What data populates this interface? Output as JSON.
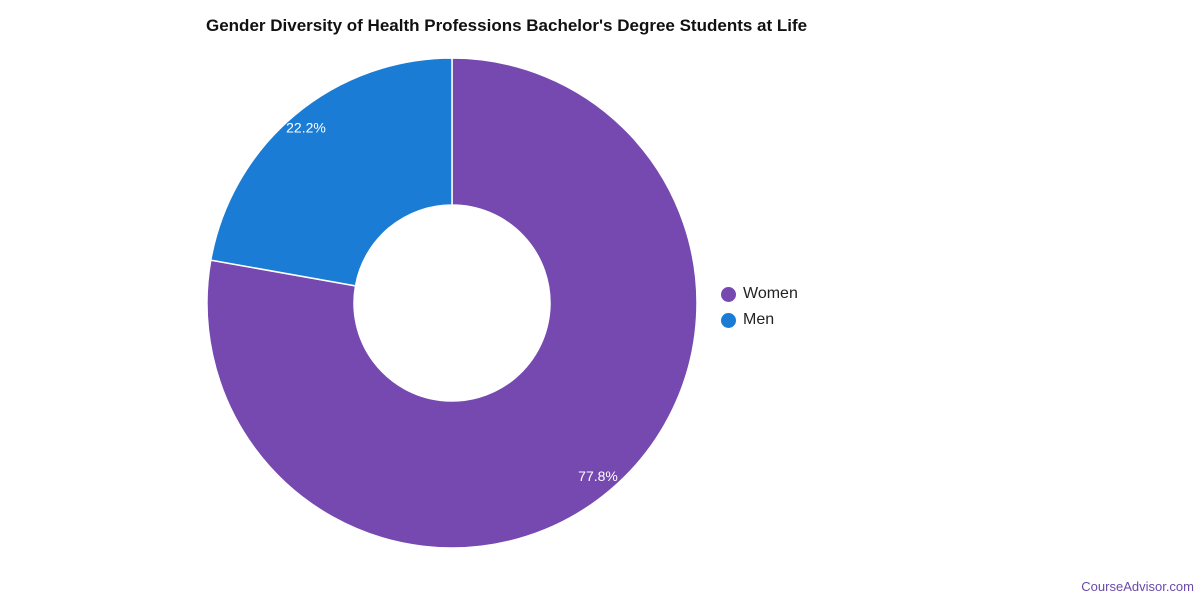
{
  "chart_data": {
    "type": "pie",
    "variant": "donut",
    "title": "Gender Diversity of Health Professions Bachelor's Degree Students at Life",
    "categories": [
      "Women",
      "Men"
    ],
    "values": [
      77.8,
      22.2
    ],
    "value_labels": [
      "77.8%",
      "22.2%"
    ],
    "unit": "%",
    "colors": [
      "#7549b0",
      "#1a7cd4"
    ],
    "legend": {
      "placement": "right",
      "entries": [
        {
          "label": "Women",
          "color": "#7549b0"
        },
        {
          "label": "Men",
          "color": "#1a7cd4"
        }
      ]
    }
  },
  "footer": {
    "credit": "CourseAdvisor.com"
  }
}
